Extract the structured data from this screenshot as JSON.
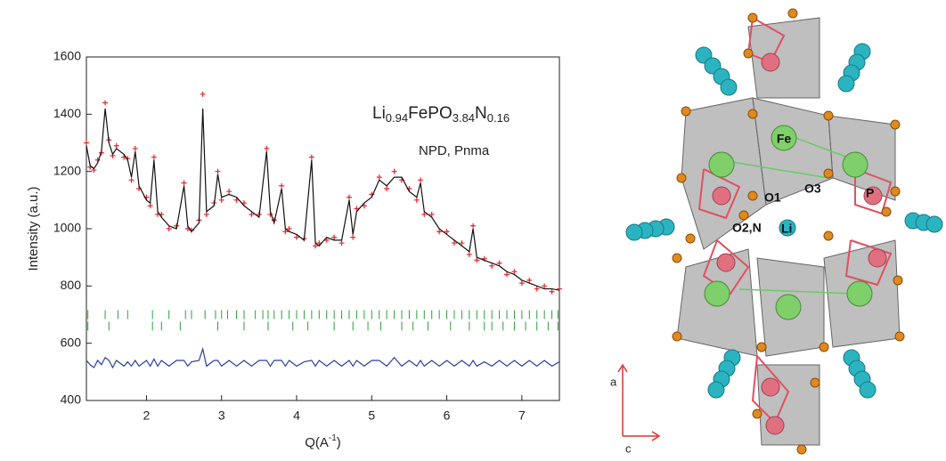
{
  "chart_data": {
    "type": "line",
    "ylabel": "Intensity (a.u.)",
    "xlabel": [
      "Q(A",
      "-1",
      ")"
    ],
    "formula": [
      "Li",
      "0.94",
      "FePO",
      "3.84",
      "N",
      "0.16"
    ],
    "annotation": "NPD, Pnma",
    "xlim": [
      1.2,
      7.5
    ],
    "xticks": [
      2,
      3,
      4,
      5,
      6,
      7
    ],
    "ylim": [
      400,
      1600
    ],
    "yticks": [
      400,
      600,
      800,
      1000,
      1200,
      1400,
      1600
    ],
    "x": [
      1.2,
      1.25,
      1.3,
      1.35,
      1.4,
      1.45,
      1.5,
      1.55,
      1.6,
      1.7,
      1.75,
      1.8,
      1.85,
      1.9,
      2.0,
      2.05,
      2.1,
      2.15,
      2.2,
      2.3,
      2.4,
      2.5,
      2.55,
      2.6,
      2.7,
      2.75,
      2.8,
      2.9,
      2.95,
      3.0,
      3.1,
      3.2,
      3.3,
      3.4,
      3.5,
      3.6,
      3.65,
      3.7,
      3.8,
      3.85,
      3.9,
      4.0,
      4.1,
      4.2,
      4.25,
      4.3,
      4.4,
      4.5,
      4.6,
      4.7,
      4.75,
      4.8,
      4.9,
      5.0,
      5.1,
      5.2,
      5.3,
      5.4,
      5.5,
      5.6,
      5.65,
      5.7,
      5.8,
      5.9,
      6.0,
      6.1,
      6.2,
      6.3,
      6.35,
      6.4,
      6.5,
      6.6,
      6.7,
      6.8,
      6.9,
      7.0,
      7.1,
      7.2,
      7.3,
      7.4,
      7.5
    ],
    "series": [
      {
        "style": "marker",
        "color": "#e8262a",
        "values": [
          1300,
          1215,
          1205,
          1240,
          1265,
          1440,
          1310,
          1255,
          1290,
          1250,
          1245,
          1170,
          1280,
          1140,
          1110,
          1080,
          1250,
          1050,
          1050,
          1000,
          1010,
          1160,
          1000,
          995,
          1030,
          1470,
          1050,
          1090,
          1200,
          1100,
          1130,
          1100,
          1090,
          1050,
          1050,
          1280,
          1050,
          1030,
          1150,
          990,
          1000,
          970,
          965,
          1250,
          940,
          950,
          960,
          970,
          950,
          1110,
          970,
          1070,
          1080,
          1120,
          1180,
          1140,
          1200,
          1170,
          1140,
          1100,
          1170,
          1050,
          1050,
          990,
          990,
          950,
          950,
          910,
          1010,
          890,
          895,
          870,
          880,
          840,
          850,
          810,
          820,
          790,
          800,
          780,
          790
        ]
      },
      {
        "style": "line",
        "color": "#111111",
        "values": [
          1290,
          1220,
          1210,
          1230,
          1270,
          1420,
          1300,
          1260,
          1280,
          1260,
          1240,
          1180,
          1270,
          1150,
          1100,
          1090,
          1240,
          1060,
          1040,
          1010,
          1000,
          1150,
          1010,
          990,
          1020,
          1420,
          1060,
          1080,
          1190,
          1110,
          1120,
          1110,
          1080,
          1060,
          1040,
          1270,
          1060,
          1020,
          1140,
          1000,
          990,
          980,
          960,
          1240,
          950,
          940,
          970,
          960,
          960,
          1100,
          980,
          1060,
          1090,
          1110,
          1170,
          1150,
          1180,
          1180,
          1130,
          1110,
          1160,
          1060,
          1040,
          1000,
          980,
          960,
          940,
          920,
          1000,
          900,
          890,
          880,
          870,
          850,
          840,
          820,
          810,
          800,
          790,
          790,
          785
        ]
      },
      {
        "style": "line",
        "color": "#2b3f9e",
        "values": [
          540,
          525,
          515,
          540,
          525,
          550,
          540,
          515,
          540,
          520,
          535,
          520,
          540,
          520,
          540,
          520,
          545,
          520,
          540,
          520,
          540,
          540,
          520,
          535,
          540,
          580,
          520,
          540,
          540,
          520,
          540,
          520,
          540,
          520,
          540,
          540,
          520,
          540,
          540,
          520,
          540,
          520,
          535,
          540,
          520,
          540,
          520,
          540,
          520,
          540,
          520,
          540,
          520,
          540,
          540,
          520,
          550,
          520,
          540,
          520,
          540,
          520,
          540,
          520,
          540,
          520,
          540,
          520,
          540,
          520,
          535,
          520,
          540,
          520,
          540,
          520,
          540,
          520,
          540,
          520,
          535
        ]
      }
    ],
    "bragg_ticks": [
      {
        "color": "#2e9e3a",
        "y": 700,
        "x": [
          1.22,
          1.45,
          1.62,
          1.75,
          2.08,
          2.3,
          2.52,
          2.6,
          2.78,
          2.92,
          3.0,
          3.08,
          3.2,
          3.3,
          3.45,
          3.55,
          3.62,
          3.7,
          3.8,
          3.9,
          4.0,
          4.1,
          4.2,
          4.3,
          4.4,
          4.5,
          4.6,
          4.7,
          4.8,
          4.9,
          5.0,
          5.1,
          5.2,
          5.3,
          5.4,
          5.5,
          5.6,
          5.7,
          5.8,
          5.9,
          6.0,
          6.1,
          6.2,
          6.3,
          6.4,
          6.5,
          6.6,
          6.7,
          6.8,
          6.9,
          7.0,
          7.1,
          7.2,
          7.3,
          7.4,
          7.48
        ]
      },
      {
        "color": "#2e9e3a",
        "y": 660,
        "x": [
          1.22,
          1.5,
          2.08,
          2.2,
          2.45,
          2.95,
          3.3,
          3.62,
          3.95,
          4.15,
          4.5,
          4.75,
          4.95,
          5.12,
          5.4,
          5.55,
          5.75,
          6.05,
          6.3,
          6.5,
          6.6,
          6.75,
          6.9,
          7.05,
          7.2,
          7.35,
          7.48
        ]
      }
    ]
  },
  "structure": {
    "labels": [
      "Fe",
      "O1",
      "O3",
      "P",
      "O2,N",
      "Li"
    ],
    "axes": [
      "a",
      "c"
    ]
  }
}
